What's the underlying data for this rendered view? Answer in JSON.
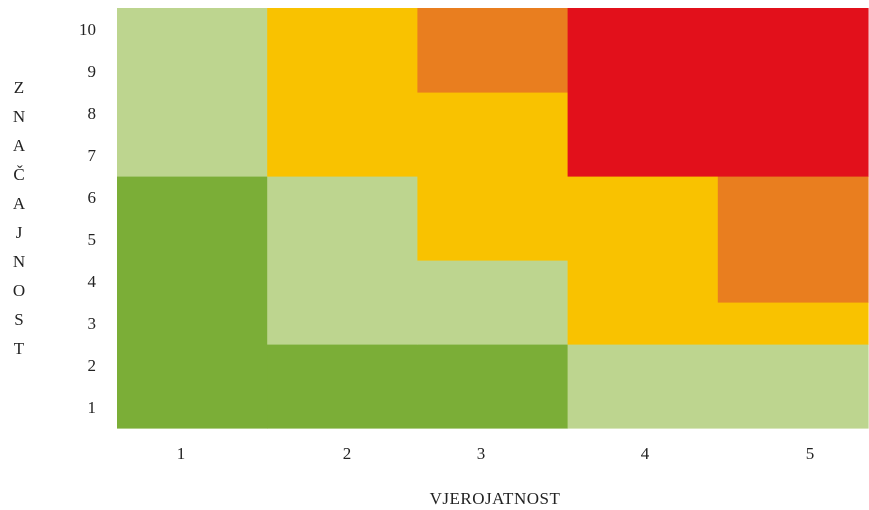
{
  "chart_data": {
    "type": "heatmap",
    "title": "",
    "xlabel": "VJEROJATNOST",
    "ylabel": "ZNAČAJNOST",
    "x_ticks": [
      "1",
      "2",
      "3",
      "4",
      "5"
    ],
    "y_ticks": [
      "1",
      "2",
      "3",
      "4",
      "5",
      "6",
      "7",
      "8",
      "9",
      "10"
    ],
    "xlim": [
      0.5,
      5.5
    ],
    "ylim": [
      0.5,
      10.5
    ],
    "legend": "none",
    "grid": false,
    "colors": {
      "dark_green": "#7bae37",
      "light_green": "#bdd58f",
      "yellow": "#f9c200",
      "orange": "#e97e1f",
      "red": "#e2101b"
    },
    "cells": [
      {
        "x0": 0.5,
        "x1": 1.5,
        "y0": 0.5,
        "y1": 6.5,
        "color": "dark_green"
      },
      {
        "x0": 1.5,
        "x1": 3.5,
        "y0": 0.5,
        "y1": 2.5,
        "color": "dark_green"
      },
      {
        "x0": 0.5,
        "x1": 1.5,
        "y0": 6.5,
        "y1": 10.5,
        "color": "light_green"
      },
      {
        "x0": 1.5,
        "x1": 2.5,
        "y0": 2.5,
        "y1": 6.5,
        "color": "light_green"
      },
      {
        "x0": 2.5,
        "x1": 3.5,
        "y0": 2.5,
        "y1": 4.5,
        "color": "light_green"
      },
      {
        "x0": 3.5,
        "x1": 5.5,
        "y0": 0.5,
        "y1": 2.5,
        "color": "light_green"
      },
      {
        "x0": 1.5,
        "x1": 2.5,
        "y0": 6.5,
        "y1": 10.5,
        "color": "yellow"
      },
      {
        "x0": 2.5,
        "x1": 3.5,
        "y0": 4.5,
        "y1": 8.5,
        "color": "yellow"
      },
      {
        "x0": 3.5,
        "x1": 4.5,
        "y0": 2.5,
        "y1": 6.5,
        "color": "yellow"
      },
      {
        "x0": 4.5,
        "x1": 5.5,
        "y0": 2.5,
        "y1": 3.5,
        "color": "yellow"
      },
      {
        "x0": 2.5,
        "x1": 3.5,
        "y0": 8.5,
        "y1": 10.5,
        "color": "orange"
      },
      {
        "x0": 4.5,
        "x1": 5.5,
        "y0": 3.5,
        "y1": 6.5,
        "color": "orange"
      },
      {
        "x0": 3.5,
        "x1": 5.5,
        "y0": 6.5,
        "y1": 10.5,
        "color": "red"
      }
    ]
  }
}
